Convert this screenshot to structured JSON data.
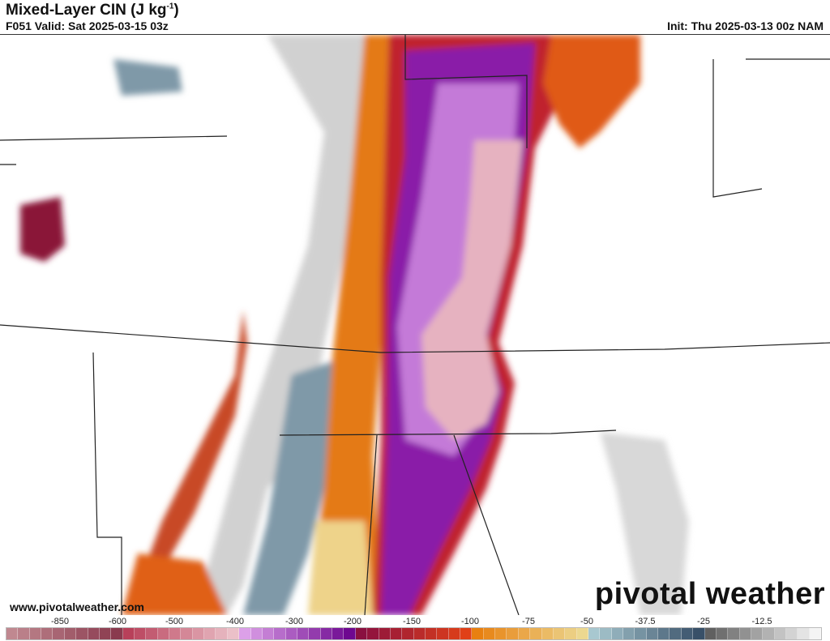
{
  "header": {
    "title": "Mixed-Layer CIN (J kg",
    "title_sup": "-1",
    "title_end": ")",
    "valid": "F051 Valid: Sat 2025-03-15 03z",
    "init": "Init: Thu 2025-03-13 00z NAM"
  },
  "footer": {
    "website": "www.pivotalweather.com",
    "logo": "pivotal weather"
  },
  "colorbar": {
    "ticks": [
      "-850",
      "-600",
      "-500",
      "-400",
      "-300",
      "-200",
      "-150",
      "-100",
      "-75",
      "-50",
      "-37.5",
      "-25",
      "-12.5"
    ],
    "groups": [
      {
        "from": "#c08890",
        "to": "#8a3a4e",
        "n": 10
      },
      {
        "from": "#b8405a",
        "to": "#ebc0c8",
        "n": 10
      },
      {
        "from": "#dca0e8",
        "to": "#6e0890",
        "n": 10
      },
      {
        "from": "#8a1040",
        "to": "#e04018",
        "n": 10
      },
      {
        "from": "#e88010",
        "to": "#ecd890",
        "n": 10
      },
      {
        "from": "#a8c8d0",
        "to": "#385068",
        "n": 10
      },
      {
        "from": "#606060",
        "to": "#f4f4f4",
        "n": 10
      }
    ]
  }
}
